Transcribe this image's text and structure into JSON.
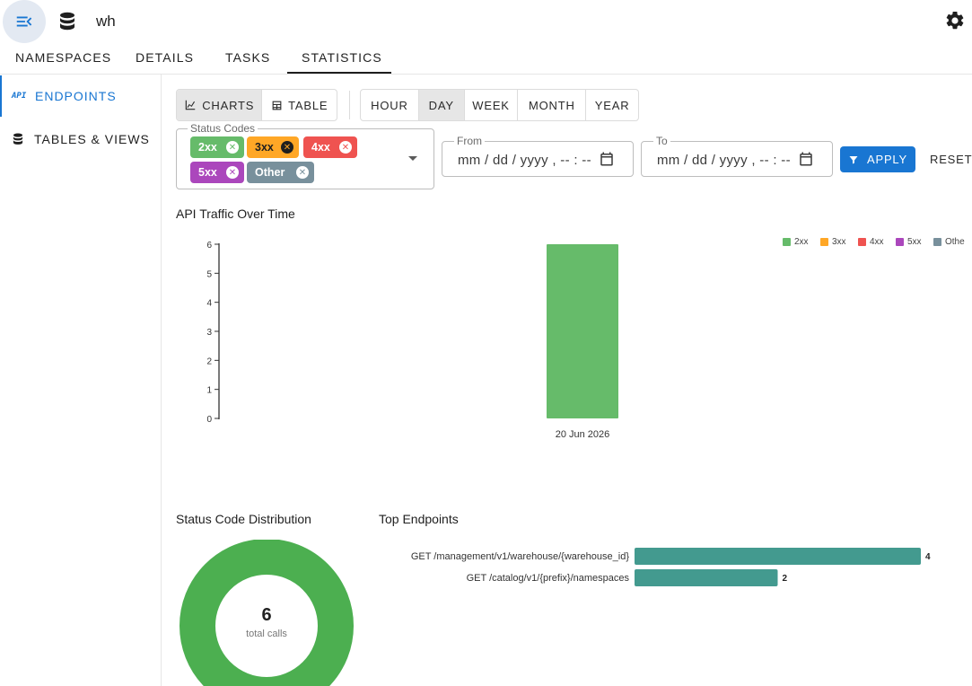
{
  "app": {
    "title": "wh"
  },
  "main_tabs": [
    {
      "label": "NAMESPACES"
    },
    {
      "label": "DETAILS"
    },
    {
      "label": "TASKS"
    },
    {
      "label": "STATISTICS"
    }
  ],
  "active_main_tab": "STATISTICS",
  "sidebar": {
    "items": [
      {
        "label": "ENDPOINTS",
        "icon_text": "API",
        "active": true
      },
      {
        "label": "TABLES & VIEWS",
        "active": false
      }
    ]
  },
  "view_toggle": {
    "charts": "CHARTS",
    "table": "TABLE",
    "selected": "CHARTS"
  },
  "granularity": {
    "options": [
      "HOUR",
      "DAY",
      "WEEK",
      "MONTH",
      "YEAR"
    ],
    "selected": "DAY"
  },
  "filters": {
    "status_codes_label": "Status Codes",
    "chips": [
      {
        "label": "2xx",
        "color": "#66bb6a",
        "text_color": "#ffffff"
      },
      {
        "label": "3xx",
        "color": "#ffa726",
        "text_color": "#1f1f1f"
      },
      {
        "label": "4xx",
        "color": "#ef5350",
        "text_color": "#ffffff"
      },
      {
        "label": "5xx",
        "color": "#ab47bc",
        "text_color": "#ffffff"
      },
      {
        "label": "Other",
        "color": "#78909c",
        "text_color": "#ffffff"
      }
    ],
    "from_label": "From",
    "to_label": "To",
    "date_placeholder": "mm / dd / yyyy ,  -- : --",
    "apply_label": "APPLY",
    "reset_label": "RESET"
  },
  "colors": {
    "accent": "#1976d2",
    "bar_green": "#66bb6a",
    "donut_green": "#4caf50",
    "endpoint_bar": "#439a8f"
  },
  "traffic_chart": {
    "title": "API Traffic Over Time",
    "chart_data": {
      "type": "bar",
      "categories": [
        "20 Jun 2026"
      ],
      "series": [
        {
          "name": "2xx",
          "color": "#66bb6a",
          "values": [
            6
          ]
        },
        {
          "name": "3xx",
          "color": "#ffa726",
          "values": [
            0
          ]
        },
        {
          "name": "4xx",
          "color": "#ef5350",
          "values": [
            0
          ]
        },
        {
          "name": "5xx",
          "color": "#ab47bc",
          "values": [
            0
          ]
        },
        {
          "name": "Othe",
          "color": "#78909c",
          "values": [
            0
          ]
        }
      ],
      "yticks": [
        0,
        1,
        2,
        3,
        4,
        5,
        6
      ],
      "ylim": [
        0,
        6
      ],
      "legend": "top-right",
      "grid": false
    }
  },
  "status_distribution": {
    "title": "Status Code Distribution",
    "total": "6",
    "total_label": "total calls",
    "chart_data": {
      "type": "pie",
      "labels": [
        "2xx"
      ],
      "values": [
        6
      ]
    }
  },
  "top_endpoints": {
    "title": "Top Endpoints",
    "chart_data": {
      "type": "bar",
      "orientation": "horizontal",
      "categories": [
        "GET /management/v1/warehouse/{warehouse_id}",
        "GET /catalog/v1/{prefix}/namespaces"
      ],
      "values": [
        4,
        2
      ],
      "xlim": [
        0,
        4
      ]
    }
  }
}
